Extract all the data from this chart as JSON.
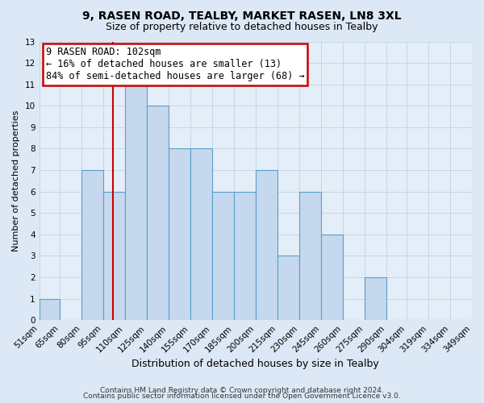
{
  "title1": "9, RASEN ROAD, TEALBY, MARKET RASEN, LN8 3XL",
  "title2": "Size of property relative to detached houses in Tealby",
  "xlabel": "Distribution of detached houses by size in Tealby",
  "ylabel": "Number of detached properties",
  "bin_edges": [
    51,
    65,
    80,
    95,
    110,
    125,
    140,
    155,
    170,
    185,
    200,
    215,
    230,
    245,
    260,
    275,
    290,
    304,
    319,
    334,
    349
  ],
  "counts": [
    1,
    0,
    7,
    6,
    11,
    10,
    8,
    8,
    6,
    6,
    7,
    3,
    6,
    4,
    0,
    2,
    0,
    0,
    0,
    0
  ],
  "bar_color": "#c5d8ed",
  "bar_edge_color": "#5a9ec9",
  "red_line_x": 102,
  "ylim": [
    0,
    13
  ],
  "yticks": [
    0,
    1,
    2,
    3,
    4,
    5,
    6,
    7,
    8,
    9,
    10,
    11,
    12,
    13
  ],
  "annotation_title": "9 RASEN ROAD: 102sqm",
  "annotation_line1": "← 16% of detached houses are smaller (13)",
  "annotation_line2": "84% of semi-detached houses are larger (68) →",
  "annotation_box_color": "#ffffff",
  "annotation_border_color": "#cc0000",
  "footer1": "Contains HM Land Registry data © Crown copyright and database right 2024.",
  "footer2": "Contains public sector information licensed under the Open Government Licence v3.0.",
  "background_color": "#dce8f5",
  "plot_background_color": "#e4eef8",
  "title1_fontsize": 10,
  "title2_fontsize": 9,
  "xlabel_fontsize": 9,
  "ylabel_fontsize": 8,
  "tick_fontsize": 7.5,
  "footer_fontsize": 6.5,
  "annotation_fontsize": 8.5
}
